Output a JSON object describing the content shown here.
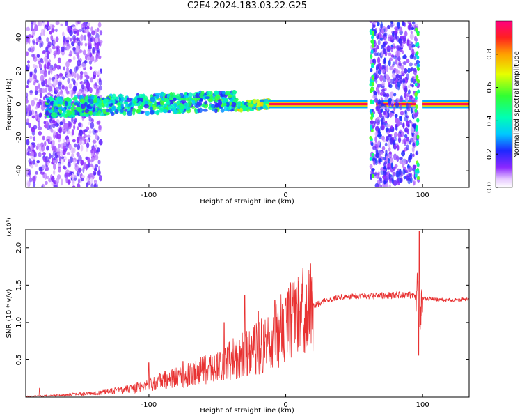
{
  "page_title": "C2E4.2024.183.03.22.G25",
  "chart_data": [
    {
      "type": "heatmap",
      "xlabel": "Height of straight line (km)",
      "ylabel": "Frequency (Hz)",
      "xlim": [
        -190,
        134
      ],
      "ylim": [
        -50,
        50
      ],
      "xticks": [
        -100,
        0,
        100
      ],
      "xtick_labels": [
        "-100",
        "0",
        "100"
      ],
      "yticks": [
        -40,
        -20,
        0,
        20,
        40
      ],
      "ytick_labels": [
        "-40",
        "-20",
        "0",
        "20",
        "40"
      ],
      "grid": false,
      "colorbar": {
        "label": "Normalized spectral amplitude",
        "range": [
          0,
          1
        ],
        "ticks": [
          0,
          0.2,
          0.4,
          0.6,
          0.8
        ],
        "tick_labels": [
          "0.0",
          "0.2",
          "0.4",
          "0.6",
          "0.8"
        ]
      },
      "regions": [
        {
          "name": "noisy-low-altitude",
          "x": [
            -190,
            -135
          ],
          "y": [
            -50,
            50
          ],
          "amplitude": 0.15
        },
        {
          "name": "broadened-carrier",
          "x": [
            -175,
            -35
          ],
          "y": [
            -6,
            8
          ],
          "amplitude": 0.45
        },
        {
          "name": "narrowing-carrier",
          "x": [
            -35,
            -12
          ],
          "y": [
            -4,
            2
          ],
          "amplitude": 0.6
        },
        {
          "name": "clean-carrier",
          "x": [
            -12,
            134
          ],
          "y": [
            -1,
            1
          ],
          "amplitude": 0.95
        },
        {
          "name": "occultation-gap",
          "x": [
            62,
            97
          ],
          "y": [
            -50,
            50
          ],
          "amplitude": 0.2
        }
      ]
    },
    {
      "type": "line",
      "xlabel": "Height of straight line (km)",
      "ylabel": "SNR (10 * v/v)",
      "y_multiplier": "(x10⁴)",
      "xlim": [
        -190,
        134
      ],
      "ylim": [
        0,
        2.25
      ],
      "xticks": [
        -100,
        0,
        100
      ],
      "xtick_labels": [
        "-100",
        "0",
        "100"
      ],
      "yticks": [
        0.5,
        1.0,
        1.5,
        2.0
      ],
      "ytick_labels": [
        "0.5",
        "1.0",
        "1.5",
        "2.0"
      ],
      "grid": false,
      "color": "#e83232",
      "series": [
        {
          "x": [
            -190,
            -170,
            -150,
            -130,
            -110,
            -100,
            -90,
            -80,
            -70,
            -60,
            -50,
            -40,
            -30,
            -20,
            -10,
            0,
            10,
            20,
            30,
            40,
            50,
            60,
            70,
            80,
            90,
            95,
            97,
            98,
            100,
            110,
            120,
            134
          ],
          "values": [
            0.01,
            0.02,
            0.04,
            0.07,
            0.12,
            0.17,
            0.22,
            0.26,
            0.3,
            0.36,
            0.42,
            0.5,
            0.58,
            0.66,
            0.78,
            0.95,
            1.1,
            1.22,
            1.3,
            1.34,
            1.35,
            1.36,
            1.36,
            1.37,
            1.37,
            1.35,
            1.6,
            1.1,
            1.32,
            1.31,
            1.3,
            1.31
          ]
        }
      ],
      "spikes": [
        {
          "x": -180,
          "y": 0.12
        },
        {
          "x": -100,
          "y": 0.46
        },
        {
          "x": -75,
          "y": 0.48
        },
        {
          "x": -45,
          "y": 1.0
        },
        {
          "x": -30,
          "y": 1.36
        },
        {
          "x": -20,
          "y": 1.15
        },
        {
          "x": -8,
          "y": 1.3
        },
        {
          "x": 10,
          "y": 1.15
        },
        {
          "x": 97.5,
          "y": 2.22
        },
        {
          "x": 97.0,
          "y": 0.56
        }
      ]
    }
  ]
}
